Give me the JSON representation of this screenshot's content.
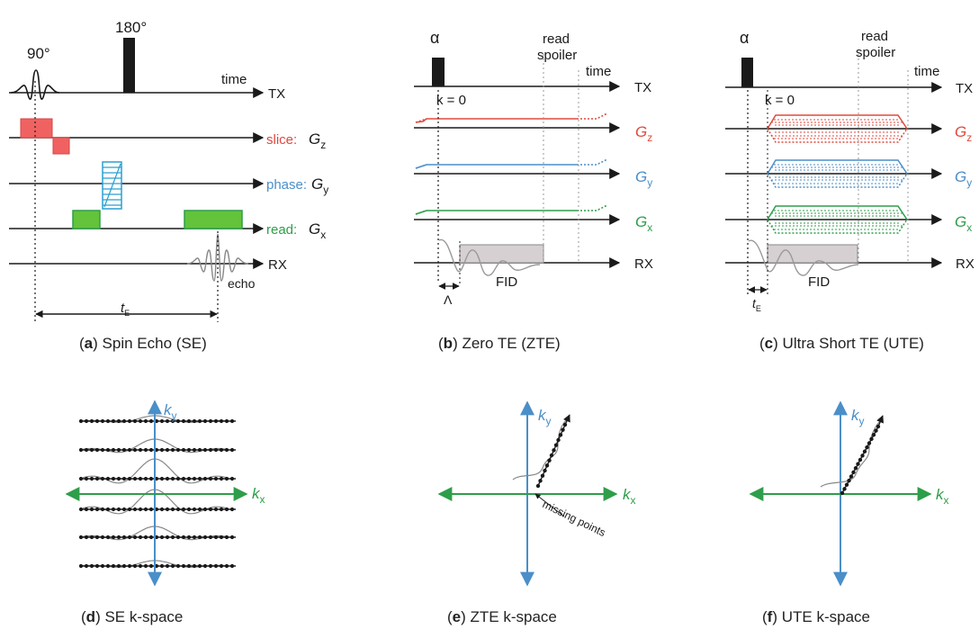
{
  "colors": {
    "black": "#1a1a1a",
    "red": "#e8554e",
    "blue": "#4a8fc9",
    "green": "#2e9e4a",
    "green_fill": "#63c33a",
    "gray_fill": "#d6d0d2",
    "gray_line": "#8a8a8a"
  },
  "panel_a": {
    "pulse_90": "90°",
    "pulse_180": "180°",
    "time": "time",
    "tx": "TX",
    "rx": "RX",
    "slice": "slice:",
    "phase": "phase:",
    "read": "read:",
    "gz": "G",
    "gz_sub": "z",
    "gy": "G",
    "gy_sub": "y",
    "gx": "G",
    "gx_sub": "x",
    "echo": "echo",
    "te": "t",
    "te_sub": "E",
    "caption_letter": "a",
    "caption_text": " Spin Echo (SE)"
  },
  "panel_b": {
    "alpha": "α",
    "read_spoiler_1": "read",
    "read_spoiler_2": "spoiler",
    "time": "time",
    "tx": "TX",
    "rx": "RX",
    "k0": "k = 0",
    "gz": "G",
    "gz_sub": "z",
    "gy": "G",
    "gy_sub": "y",
    "gx": "G",
    "gx_sub": "x",
    "fid": "FID",
    "delta": "Λ",
    "caption_letter": "b",
    "caption_text": "   Zero TE (ZTE)"
  },
  "panel_c": {
    "alpha": "α",
    "read_spoiler_1": "read",
    "read_spoiler_2": "spoiler",
    "time": "time",
    "tx": "TX",
    "rx": "RX",
    "k0": "k = 0",
    "gz": "G",
    "gz_sub": "z",
    "gy": "G",
    "gy_sub": "y",
    "gx": "G",
    "gx_sub": "x",
    "fid": "FID",
    "te": "t",
    "te_sub": "E",
    "caption_letter": "c",
    "caption_text": " Ultra Short TE (UTE)"
  },
  "panel_d": {
    "ky": "k",
    "ky_sub": "y",
    "kx": "k",
    "kx_sub": "x",
    "caption_letter": "d",
    "caption_text": " SE k-space"
  },
  "panel_e": {
    "ky": "k",
    "ky_sub": "y",
    "kx": "k",
    "kx_sub": "x",
    "missing": "missing points",
    "caption_letter": "e",
    "caption_text": " ZTE  k-space"
  },
  "panel_f": {
    "ky": "k",
    "ky_sub": "y",
    "kx": "k",
    "kx_sub": "x",
    "caption_letter": "f",
    "caption_text": " UTE  k-space"
  }
}
